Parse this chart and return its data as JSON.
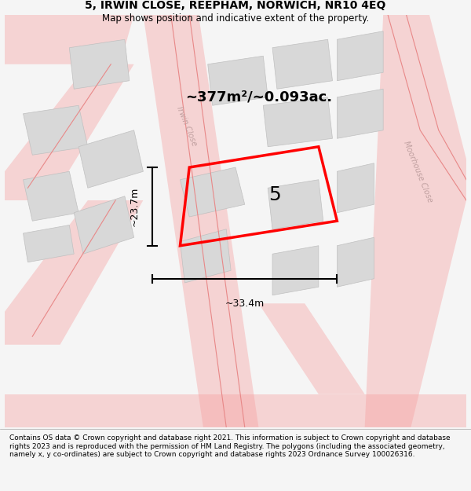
{
  "title": "5, IRWIN CLOSE, REEPHAM, NORWICH, NR10 4EQ",
  "subtitle": "Map shows position and indicative extent of the property.",
  "area_text": "~377m²/~0.093ac.",
  "width_label": "~33.4m",
  "height_label": "~23.7m",
  "plot_number": "5",
  "footer": "Contains OS data © Crown copyright and database right 2021. This information is subject to Crown copyright and database rights 2023 and is reproduced with the permission of HM Land Registry. The polygons (including the associated geometry, namely x, y co-ordinates) are subject to Crown copyright and database rights 2023 Ordnance Survey 100026316.",
  "bg_color": "#f5f5f5",
  "map_bg": "#ffffff",
  "road_color": "#f5a0a0",
  "building_color": "#d8d8d8",
  "plot_color": "#ff0000",
  "road_line_color": "#e88888",
  "street_label_color": "#c0a0a0",
  "dim_color": "#000000",
  "title_color": "#000000",
  "footer_color": "#000000"
}
